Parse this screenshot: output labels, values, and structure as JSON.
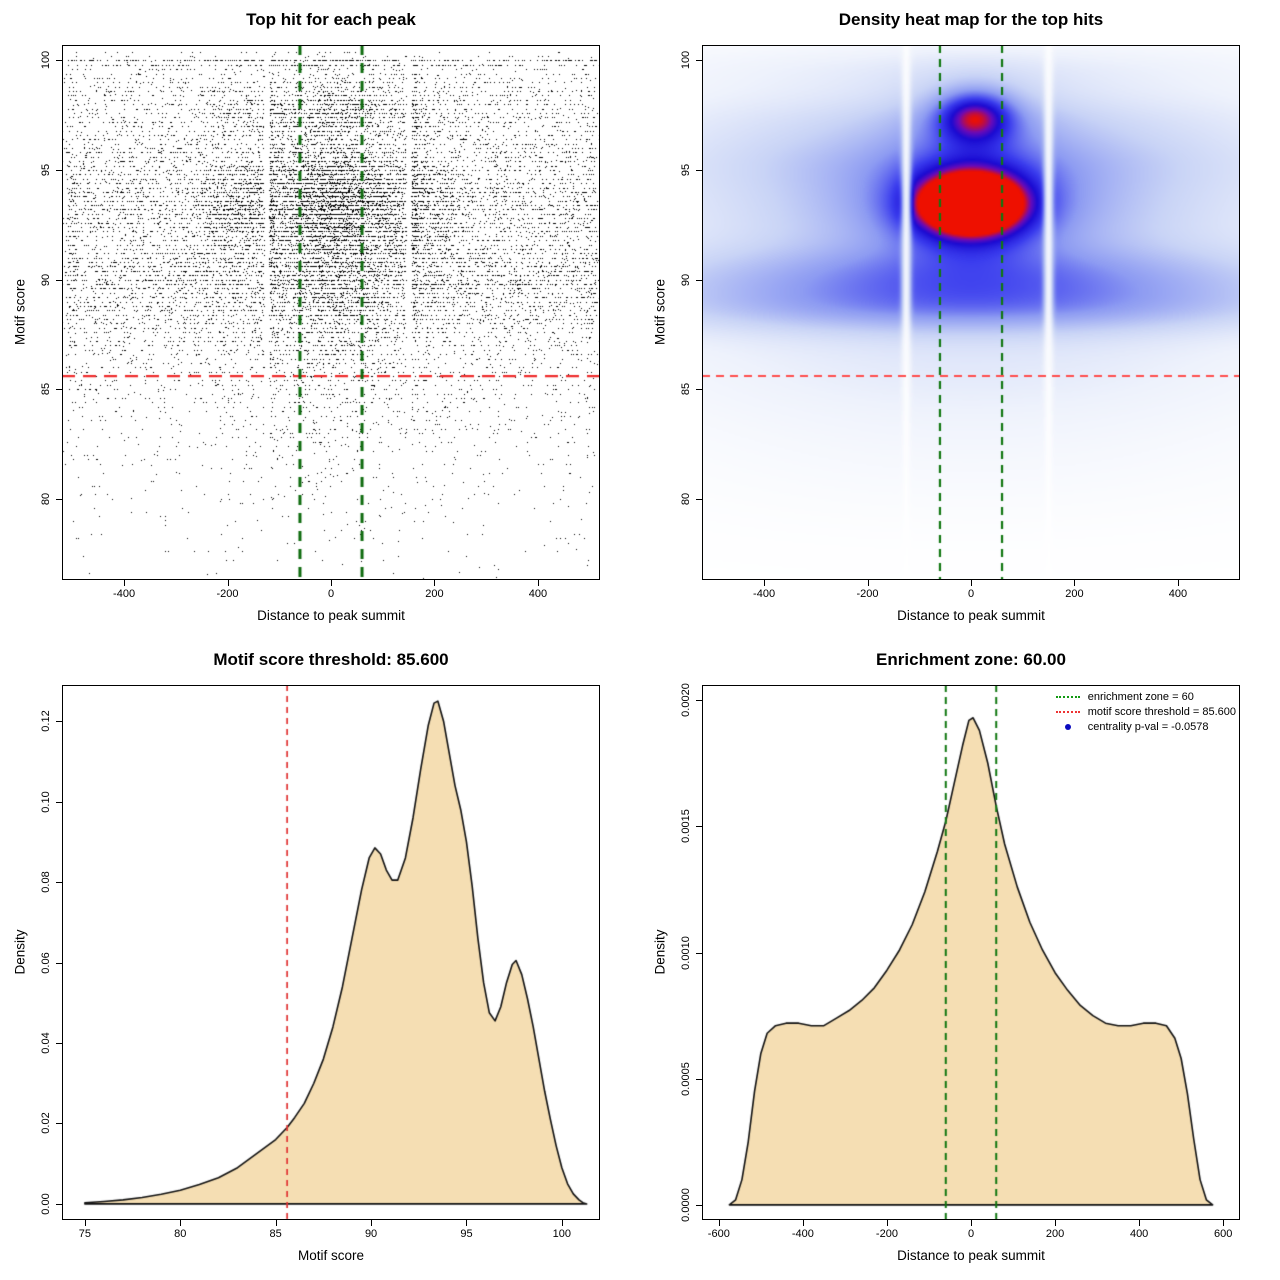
{
  "colors": {
    "background": "#ffffff",
    "point": "#000000",
    "threshold_red": "#ee2c2c",
    "zone_green": "#117711",
    "density_fill": "#f5deb3",
    "density_stroke": "#111111",
    "legend_blue": "#0b0bbf"
  },
  "chart_data": [
    {
      "id": "top-hit-scatter",
      "type": "scatter",
      "title": "Top hit for each peak",
      "xlabel": "Distance to peak summit",
      "ylabel": "Motif score",
      "xlim": [
        -520,
        520
      ],
      "ylim": [
        76.3,
        100.7
      ],
      "xticks": [
        -400,
        -200,
        0,
        200,
        400
      ],
      "xtick_labels": [
        "-400",
        "-200",
        "0",
        "200",
        "400"
      ],
      "yticks": [
        80,
        85,
        90,
        95,
        100
      ],
      "ytick_labels": [
        "80",
        "85",
        "90",
        "95",
        "100"
      ],
      "n_points": 18000,
      "seed": 42,
      "score_quantum": 0.2,
      "quantize_prob": 0.72,
      "marginals_note": "x follows distance-density curve, y follows motif-score-density curve",
      "ref_lines": [
        {
          "name": "motif-score-threshold",
          "axis": "y",
          "value": 85.6,
          "color": "#ee2c2c",
          "width": 2.4,
          "dash": [
            13,
            8
          ]
        },
        {
          "name": "enrichment-zone-left",
          "axis": "x",
          "value": -60,
          "color": "#0e6b0e",
          "width": 3,
          "dash": [
            10,
            8
          ]
        },
        {
          "name": "enrichment-zone-right",
          "axis": "x",
          "value": 60,
          "color": "#0e6b0e",
          "width": 3,
          "dash": [
            10,
            8
          ]
        }
      ]
    },
    {
      "id": "top-hit-heatmap",
      "type": "heatmap",
      "title": "Density heat map for the top hits",
      "xlabel": "Distance to peak summit",
      "ylabel": "Motif score",
      "xlim": [
        -520,
        520
      ],
      "ylim": [
        76.3,
        100.7
      ],
      "xticks": [
        -400,
        -200,
        0,
        200,
        400
      ],
      "xtick_labels": [
        "-400",
        "-200",
        "0",
        "200",
        "400"
      ],
      "yticks": [
        80,
        85,
        90,
        95,
        100
      ],
      "ytick_labels": [
        "80",
        "85",
        "90",
        "95",
        "100"
      ],
      "white_gaps": [
        -125,
        150
      ],
      "ramp": [
        [
          0,
          "#ffffff"
        ],
        [
          0.14,
          "#eef2fc"
        ],
        [
          0.32,
          "#c9d4f6"
        ],
        [
          0.52,
          "#8e9cf2"
        ],
        [
          0.7,
          "#3a3cee"
        ],
        [
          0.83,
          "#1a0ad2"
        ],
        [
          0.91,
          "#6c0ab8"
        ],
        [
          1,
          "#ee1000"
        ]
      ],
      "kernels": [
        {
          "x": 0,
          "y": 93.4,
          "sx": 80,
          "sy": 1.1,
          "w": 0.9
        },
        {
          "x": 0,
          "y": 93.4,
          "sx": 185,
          "sy": 2.1,
          "w": 0.26
        },
        {
          "x": 8,
          "y": 97.45,
          "sx": 52,
          "sy": 0.85,
          "w": 0.5
        },
        {
          "x": 8,
          "y": 97.45,
          "sx": 115,
          "sy": 1.6,
          "w": 0.14
        },
        {
          "x": 0,
          "y": 93.2,
          "sx": 470,
          "sy": 1.7,
          "w": 0.2
        },
        {
          "x": 0,
          "y": 90.1,
          "sx": 500,
          "sy": 1.05,
          "w": 0.34
        },
        {
          "x": 0,
          "y": 88.6,
          "sx": 500,
          "sy": 0.85,
          "w": 0.26
        },
        {
          "x": 0,
          "y": 95.6,
          "sx": 480,
          "sy": 1.15,
          "w": 0.2
        },
        {
          "x": 0,
          "y": 97.5,
          "sx": 480,
          "sy": 1.0,
          "w": 0.16
        },
        {
          "x": 0,
          "y": 99.6,
          "sx": 470,
          "sy": 0.9,
          "w": 0.13
        },
        {
          "x": 0,
          "y": 91.8,
          "sx": 520,
          "sy": 4.6,
          "w": 0.16
        },
        {
          "x": 0,
          "y": 86.4,
          "sx": 500,
          "sy": 2.0,
          "w": 0.1
        },
        {
          "x": 0,
          "y": 82.5,
          "sx": 470,
          "sy": 2.6,
          "w": 0.06
        }
      ],
      "ref_lines": [
        {
          "name": "motif-score-threshold",
          "axis": "y",
          "value": 85.6,
          "color": "#ff4d4d",
          "width": 2,
          "dash": [
            8,
            6
          ]
        },
        {
          "name": "enrichment-zone-left",
          "axis": "x",
          "value": -60,
          "color": "#117711",
          "width": 2.2,
          "dash": [
            8,
            6
          ]
        },
        {
          "name": "enrichment-zone-right",
          "axis": "x",
          "value": 60,
          "color": "#117711",
          "width": 2.2,
          "dash": [
            8,
            6
          ]
        }
      ]
    },
    {
      "id": "motif-score-density",
      "type": "area",
      "title": "Motif score threshold: 85.600",
      "xlabel": "Motif score",
      "ylabel": "Density",
      "xlim": [
        73.8,
        102
      ],
      "ylim": [
        -0.004,
        0.129
      ],
      "xticks": [
        75,
        80,
        85,
        90,
        95,
        100
      ],
      "xtick_labels": [
        "75",
        "80",
        "85",
        "90",
        "95",
        "100"
      ],
      "yticks": [
        0,
        0.02,
        0.04,
        0.06,
        0.08,
        0.1,
        0.12
      ],
      "ytick_labels": [
        "0.00",
        "0.02",
        "0.04",
        "0.06",
        "0.08",
        "0.10",
        "0.12"
      ],
      "threshold_value": 85.6,
      "curve": [
        [
          75,
          0.0003
        ],
        [
          76,
          0.0006
        ],
        [
          77,
          0.001
        ],
        [
          78,
          0.0016
        ],
        [
          79,
          0.0024
        ],
        [
          80,
          0.0034
        ],
        [
          81,
          0.0048
        ],
        [
          82,
          0.0065
        ],
        [
          83,
          0.009
        ],
        [
          84,
          0.0125
        ],
        [
          85,
          0.016
        ],
        [
          85.6,
          0.019
        ],
        [
          86,
          0.0215
        ],
        [
          86.5,
          0.025
        ],
        [
          87,
          0.03
        ],
        [
          87.5,
          0.036
        ],
        [
          88,
          0.044
        ],
        [
          88.5,
          0.054
        ],
        [
          89,
          0.066
        ],
        [
          89.5,
          0.078
        ],
        [
          89.9,
          0.086
        ],
        [
          90.2,
          0.0885
        ],
        [
          90.5,
          0.087
        ],
        [
          90.8,
          0.083
        ],
        [
          91.1,
          0.0805
        ],
        [
          91.4,
          0.0805
        ],
        [
          91.8,
          0.086
        ],
        [
          92.2,
          0.096
        ],
        [
          92.6,
          0.108
        ],
        [
          93,
          0.119
        ],
        [
          93.3,
          0.1245
        ],
        [
          93.5,
          0.125
        ],
        [
          93.8,
          0.12
        ],
        [
          94.1,
          0.112
        ],
        [
          94.4,
          0.104
        ],
        [
          94.7,
          0.098
        ],
        [
          95,
          0.09
        ],
        [
          95.3,
          0.079
        ],
        [
          95.6,
          0.066
        ],
        [
          95.9,
          0.055
        ],
        [
          96.2,
          0.0475
        ],
        [
          96.5,
          0.0455
        ],
        [
          96.8,
          0.049
        ],
        [
          97.1,
          0.055
        ],
        [
          97.4,
          0.0595
        ],
        [
          97.6,
          0.0605
        ],
        [
          97.9,
          0.057
        ],
        [
          98.2,
          0.051
        ],
        [
          98.5,
          0.044
        ],
        [
          98.8,
          0.036
        ],
        [
          99.1,
          0.028
        ],
        [
          99.4,
          0.021
        ],
        [
          99.7,
          0.0145
        ],
        [
          100,
          0.009
        ],
        [
          100.3,
          0.005
        ],
        [
          100.6,
          0.0025
        ],
        [
          100.9,
          0.001
        ],
        [
          101.1,
          0.0003
        ],
        [
          101.3,
          0
        ]
      ],
      "ref_lines": [
        {
          "name": "motif-score-threshold",
          "axis": "x",
          "value": 85.6,
          "color": "#e23333",
          "width": 1.7,
          "dash": [
            6,
            5
          ]
        }
      ]
    },
    {
      "id": "distance-density",
      "type": "area",
      "title": "Enrichment zone: 60.00",
      "xlabel": "Distance to peak summit",
      "ylabel": "Density",
      "xlim": [
        -640,
        640
      ],
      "ylim": [
        -6e-05,
        0.00206
      ],
      "xticks": [
        -600,
        -400,
        -200,
        0,
        200,
        400,
        600
      ],
      "xtick_labels": [
        "-600",
        "-400",
        "-200",
        "0",
        "200",
        "400",
        "600"
      ],
      "yticks": [
        0,
        0.0005,
        0.001,
        0.0015,
        0.002
      ],
      "ytick_labels": [
        "0.0000",
        "0.0005",
        "0.0010",
        "0.0015",
        "0.0020"
      ],
      "zone_value": 60,
      "curve": [
        [
          -575,
          0
        ],
        [
          -560,
          2e-05
        ],
        [
          -545,
          0.0001
        ],
        [
          -530,
          0.00025
        ],
        [
          -515,
          0.00045
        ],
        [
          -500,
          0.0006
        ],
        [
          -485,
          0.00068
        ],
        [
          -465,
          0.00071
        ],
        [
          -440,
          0.00072
        ],
        [
          -410,
          0.00072
        ],
        [
          -380,
          0.00071
        ],
        [
          -350,
          0.00071
        ],
        [
          -320,
          0.00074
        ],
        [
          -290,
          0.00077
        ],
        [
          -260,
          0.00081
        ],
        [
          -230,
          0.00086
        ],
        [
          -200,
          0.00093
        ],
        [
          -170,
          0.00101
        ],
        [
          -140,
          0.00111
        ],
        [
          -110,
          0.00124
        ],
        [
          -80,
          0.0014
        ],
        [
          -60,
          0.00152
        ],
        [
          -40,
          0.00167
        ],
        [
          -20,
          0.00182
        ],
        [
          -5,
          0.00192
        ],
        [
          5,
          0.00193
        ],
        [
          20,
          0.00188
        ],
        [
          40,
          0.00175
        ],
        [
          60,
          0.00158
        ],
        [
          80,
          0.00143
        ],
        [
          110,
          0.00126
        ],
        [
          140,
          0.00112
        ],
        [
          170,
          0.00101
        ],
        [
          200,
          0.00092
        ],
        [
          230,
          0.00085
        ],
        [
          260,
          0.00079
        ],
        [
          290,
          0.00075
        ],
        [
          320,
          0.00072
        ],
        [
          350,
          0.00071
        ],
        [
          380,
          0.00071
        ],
        [
          410,
          0.00072
        ],
        [
          440,
          0.00072
        ],
        [
          465,
          0.00071
        ],
        [
          485,
          0.00066
        ],
        [
          500,
          0.00058
        ],
        [
          515,
          0.00044
        ],
        [
          530,
          0.00026
        ],
        [
          545,
          0.0001
        ],
        [
          560,
          2e-05
        ],
        [
          575,
          0
        ]
      ],
      "ref_lines": [
        {
          "name": "enrichment-zone-left",
          "axis": "x",
          "value": -60,
          "color": "#117711",
          "width": 2,
          "dash": [
            7,
            5
          ]
        },
        {
          "name": "enrichment-zone-right",
          "axis": "x",
          "value": 60,
          "color": "#117711",
          "width": 2,
          "dash": [
            7,
            5
          ]
        }
      ],
      "legend": {
        "items": [
          {
            "type": "line",
            "color": "#119911",
            "label": "enrichment zone = 60"
          },
          {
            "type": "line",
            "color": "#ee3333",
            "label": "motif score threshold = 85.600"
          },
          {
            "type": "point",
            "color": "#0b0bbf",
            "label": "centrality p-val = -0.0578"
          }
        ]
      }
    }
  ]
}
